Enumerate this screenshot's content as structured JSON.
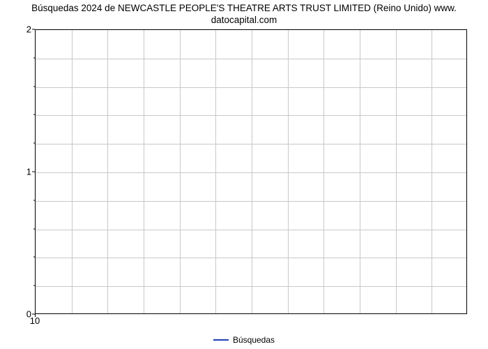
{
  "chart": {
    "type": "line",
    "title_line1": "Búsquedas 2024 de NEWCASTLE PEOPLE'S THEATRE ARTS TRUST LIMITED (Reino Unido) www.",
    "title_line2": "datocapital.com",
    "title_fontsize": 13.5,
    "title_color": "#000000",
    "background_color": "#ffffff",
    "plot_border_color": "#000000",
    "grid_color": "#c8c8c8",
    "y": {
      "min": 0,
      "max": 2,
      "major_ticks": [
        0,
        1,
        2
      ],
      "minor_count_between": 4
    },
    "x": {
      "ticks": [
        10
      ],
      "column_count": 12
    },
    "series": [
      {
        "name": "Búsquedas",
        "color": "#1f3db5",
        "line_width": 2,
        "data": []
      }
    ],
    "legend": {
      "label": "Búsquedas",
      "position": "bottom-center",
      "fontsize": 12
    },
    "axis_label_fontsize": 13,
    "axis_label_color": "#000000"
  }
}
